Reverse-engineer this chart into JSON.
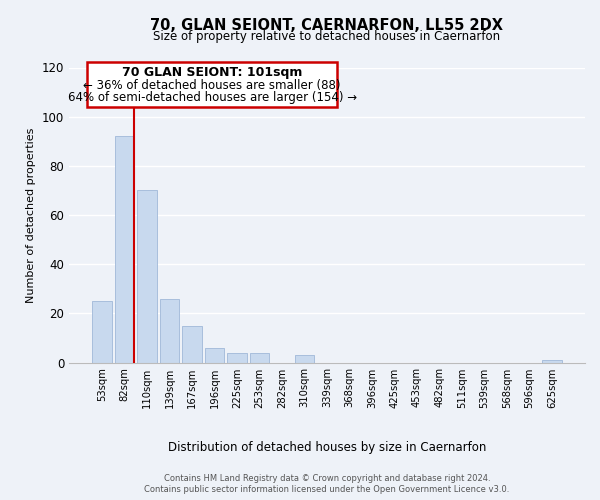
{
  "title": "70, GLAN SEIONT, CAERNARFON, LL55 2DX",
  "subtitle": "Size of property relative to detached houses in Caernarfon",
  "xlabel": "Distribution of detached houses by size in Caernarfon",
  "ylabel": "Number of detached properties",
  "bin_labels": [
    "53sqm",
    "82sqm",
    "110sqm",
    "139sqm",
    "167sqm",
    "196sqm",
    "225sqm",
    "253sqm",
    "282sqm",
    "310sqm",
    "339sqm",
    "368sqm",
    "396sqm",
    "425sqm",
    "453sqm",
    "482sqm",
    "511sqm",
    "539sqm",
    "568sqm",
    "596sqm",
    "625sqm"
  ],
  "bar_heights": [
    25,
    92,
    70,
    26,
    15,
    6,
    4,
    4,
    0,
    3,
    0,
    0,
    0,
    0,
    0,
    0,
    0,
    0,
    0,
    0,
    1
  ],
  "bar_color": "#c8d9ee",
  "bar_edge_color": "#a0b8d8",
  "red_line_after_bar": 1,
  "marker_color": "#cc0000",
  "ylim": [
    0,
    120
  ],
  "yticks": [
    0,
    20,
    40,
    60,
    80,
    100,
    120
  ],
  "annotation_title": "70 GLAN SEIONT: 101sqm",
  "annotation_line1": "← 36% of detached houses are smaller (88)",
  "annotation_line2": "64% of semi-detached houses are larger (154) →",
  "annotation_box_color": "#ffffff",
  "annotation_box_edge": "#cc0000",
  "footer_line1": "Contains HM Land Registry data © Crown copyright and database right 2024.",
  "footer_line2": "Contains public sector information licensed under the Open Government Licence v3.0.",
  "background_color": "#eef2f8",
  "grid_color": "#ffffff"
}
